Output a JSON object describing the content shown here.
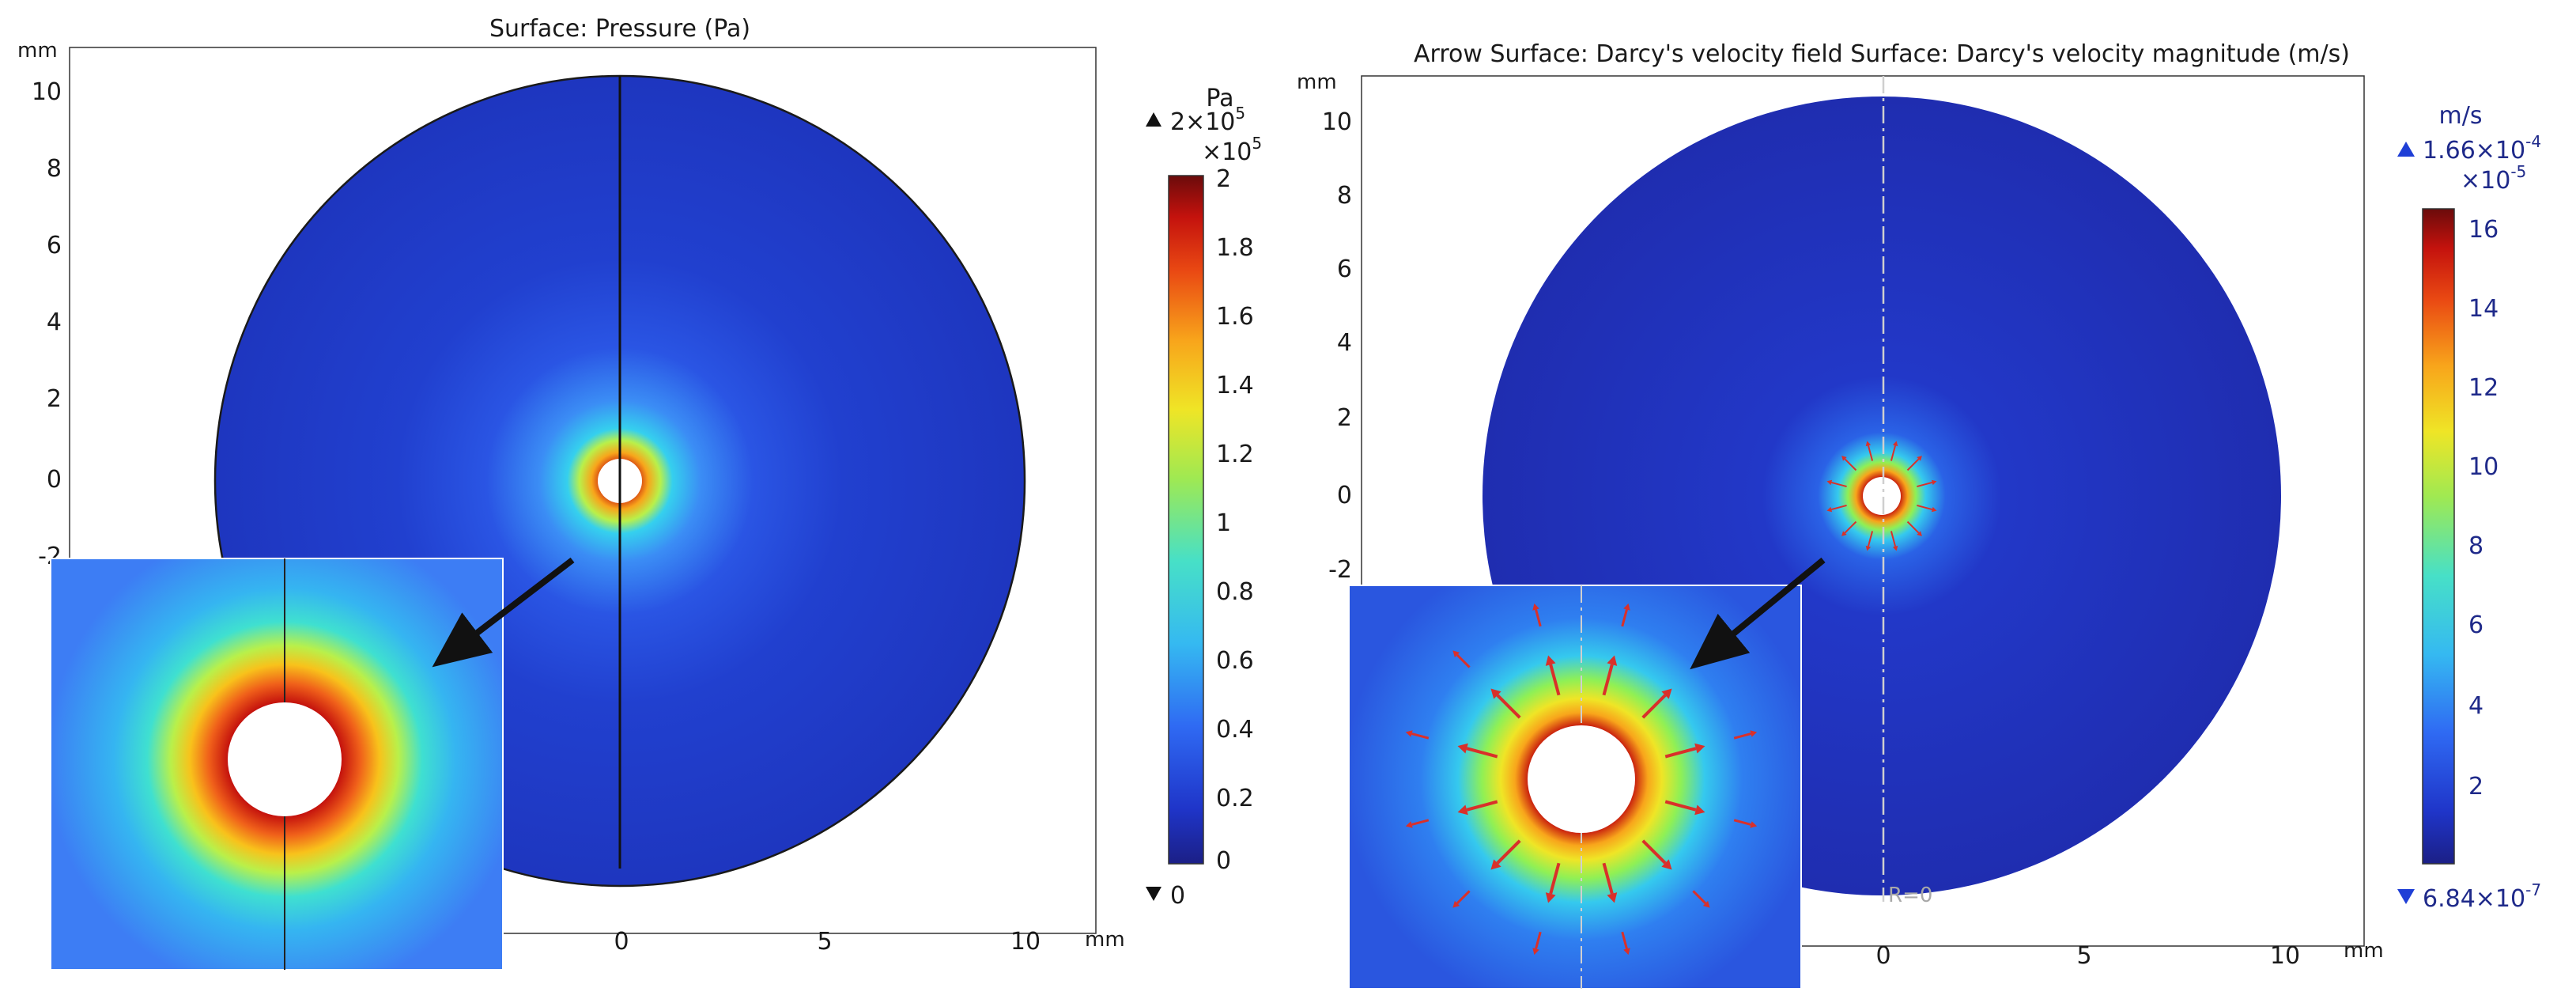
{
  "chart_data": [
    {
      "type": "heatmap",
      "title": "Surface: Pressure (Pa)",
      "xlabel": "mm",
      "ylabel": "mm",
      "x_ticks": [
        "0",
        "5",
        "10"
      ],
      "y_ticks": [
        "10",
        "8",
        "6",
        "4",
        "2",
        "0",
        "-2"
      ],
      "xlim": [
        -10,
        10
      ],
      "ylim": [
        -10,
        10
      ],
      "domain": {
        "center": [
          0,
          0
        ],
        "outer_radius": 10,
        "inner_radius": 0.7
      },
      "colorbar": {
        "unit": "Pa",
        "max_label": "2×10",
        "max_label_exp": "5",
        "multiplier": "×10",
        "multiplier_exp": "5",
        "min_label": "0",
        "ticks": [
          "2",
          "1.8",
          "1.6",
          "1.4",
          "1.2",
          "1",
          "0.8",
          "0.6",
          "0.4",
          "0.2",
          "0"
        ],
        "range": [
          0,
          2
        ]
      },
      "colors": {
        "label": "#1a1a1a",
        "arrow": "#111111"
      }
    },
    {
      "type": "heatmap",
      "title": "Arrow Surface: Darcy's velocity field  Surface: Darcy's velocity magnitude (m/s)",
      "xlabel": "mm",
      "ylabel": "mm",
      "x_ticks": [
        "0",
        "5",
        "10"
      ],
      "y_ticks": [
        "10",
        "8",
        "6",
        "4",
        "2",
        "0",
        "-2"
      ],
      "xlim": [
        -10,
        10
      ],
      "ylim": [
        -10,
        10
      ],
      "domain": {
        "center": [
          0,
          0
        ],
        "outer_radius": 10,
        "inner_radius": 0.7
      },
      "axis_marker": "R=0",
      "colorbar": {
        "unit": "m/s",
        "max_label": "1.66×10",
        "max_label_exp": "-4",
        "multiplier": "×10",
        "multiplier_exp": "-5",
        "min_label": "6.84×10",
        "min_label_exp": "-7",
        "ticks": [
          "16",
          "14",
          "12",
          "10",
          "8",
          "6",
          "4",
          "2"
        ],
        "range": [
          0.0684,
          16.6
        ]
      },
      "colors": {
        "label": "#1f2a8a",
        "arrow": "#111111",
        "velocity_arrow": "#d9302a"
      }
    }
  ]
}
